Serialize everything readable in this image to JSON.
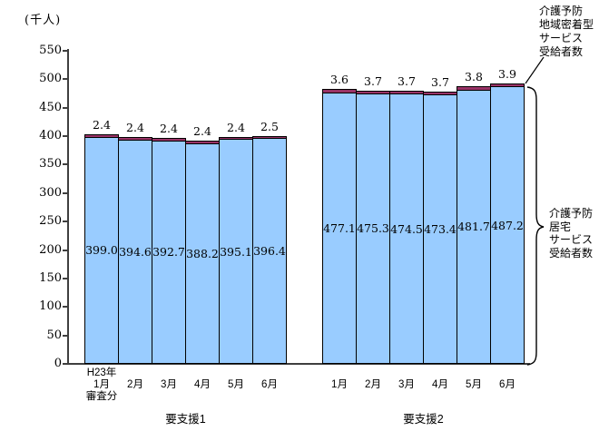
{
  "chart_data": {
    "type": "bar",
    "stacked": true,
    "unit_label": "(千人)",
    "ylim": [
      0,
      550
    ],
    "yticks": [
      0,
      50,
      100,
      150,
      200,
      250,
      300,
      350,
      400,
      450,
      500,
      550
    ],
    "grid": false,
    "legend_position": "right-annotations",
    "groups": [
      {
        "label": "要支援1",
        "categories": [
          [
            "H23年",
            "1月",
            "審査分"
          ],
          [
            "2月"
          ],
          [
            "3月"
          ],
          [
            "4月"
          ],
          [
            "5月"
          ],
          [
            "6月"
          ]
        ],
        "series": [
          {
            "name": "介護予防居宅サービス受給者数",
            "color": "#99CCFF",
            "values": [
              399.0,
              394.6,
              392.7,
              388.2,
              395.1,
              396.4
            ]
          },
          {
            "name": "介護予防地域密着型サービス受給者数",
            "color": "#993366",
            "values": [
              2.4,
              2.4,
              2.4,
              2.4,
              2.4,
              2.5
            ]
          }
        ]
      },
      {
        "label": "要支援2",
        "categories": [
          [
            "1月"
          ],
          [
            "2月"
          ],
          [
            "3月"
          ],
          [
            "4月"
          ],
          [
            "5月"
          ],
          [
            "6月"
          ]
        ],
        "series": [
          {
            "name": "介護予防居宅サービス受給者数",
            "color": "#99CCFF",
            "values": [
              477.1,
              475.3,
              474.5,
              473.4,
              481.7,
              487.2
            ]
          },
          {
            "name": "介護予防地域密着型サービス受給者数",
            "color": "#993366",
            "values": [
              3.6,
              3.7,
              3.7,
              3.7,
              3.8,
              3.9
            ]
          }
        ]
      }
    ],
    "annotations": {
      "top_right": "介護予防\n地域密着型\nサービス\n受給者数",
      "bracket": "介護予防\n居宅\nサービス\n受給者数"
    }
  }
}
